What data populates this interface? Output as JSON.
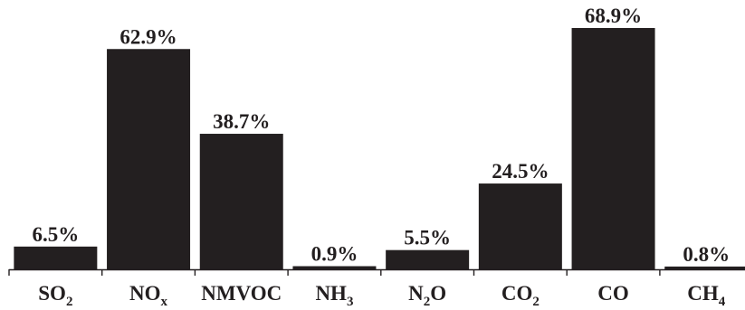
{
  "chart_data": {
    "type": "bar",
    "categories": [
      {
        "base": "SO",
        "sub": "2",
        "post": ""
      },
      {
        "base": "NO",
        "sub": "x",
        "post": ""
      },
      {
        "base": "NMVOC",
        "sub": "",
        "post": ""
      },
      {
        "base": "NH",
        "sub": "3",
        "post": ""
      },
      {
        "base": "N",
        "sub": "2",
        "post": "O"
      },
      {
        "base": "CO",
        "sub": "2",
        "post": ""
      },
      {
        "base": "CO",
        "sub": "",
        "post": ""
      },
      {
        "base": "CH",
        "sub": "4",
        "post": ""
      }
    ],
    "values": [
      6.5,
      62.9,
      38.7,
      0.9,
      5.5,
      24.5,
      68.9,
      0.8
    ],
    "value_labels": [
      "6.5%",
      "62.9%",
      "38.7%",
      "0.9%",
      "5.5%",
      "24.5%",
      "68.9%",
      "0.8%"
    ],
    "title": "",
    "xlabel": "",
    "ylabel": "",
    "ylim": [
      0,
      70
    ],
    "grid": false,
    "bar_color": "#231f20"
  }
}
